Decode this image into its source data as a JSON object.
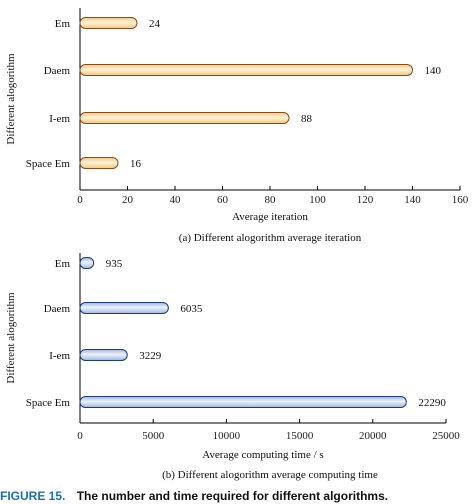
{
  "chart_data": [
    {
      "type": "bar",
      "orientation": "horizontal",
      "categories": [
        "Em",
        "Daem",
        "I-em",
        "Space Em"
      ],
      "values": [
        24,
        140,
        88,
        16
      ],
      "value_labels": [
        "24",
        "140",
        "88",
        "16"
      ],
      "xlabel": "Average iteration",
      "ylabel": "Different alogorithm",
      "xlim": [
        0,
        160
      ],
      "xticks": [
        "0",
        "20",
        "40",
        "60",
        "80",
        "100",
        "120",
        "140",
        "160"
      ],
      "caption": "(a) Different alogorithm average iteration",
      "bar_color": "#f3c77a",
      "bar_highlight": "#fff4dc",
      "bar_edge": "#8a4b1f",
      "grid": false
    },
    {
      "type": "bar",
      "orientation": "horizontal",
      "categories": [
        "Em",
        "Daem",
        "I-em",
        "Space Em"
      ],
      "values": [
        935,
        6035,
        3229,
        22290
      ],
      "value_labels": [
        "935",
        "6035",
        "3229",
        "22290"
      ],
      "xlabel": "Average computing time / s",
      "ylabel": "Different alogorithm",
      "xlim": [
        0,
        25000
      ],
      "xticks": [
        "0",
        "5000",
        "10000",
        "15000",
        "20000",
        "25000"
      ],
      "caption": "(b) Different alogorithm average computing time",
      "bar_color": "#9fb6de",
      "bar_highlight": "#eef3fb",
      "bar_edge": "#1f3a7a",
      "grid": false
    }
  ],
  "figure_caption": {
    "label": "FIGURE 15.",
    "text": "The number and time required for different algorithms."
  }
}
